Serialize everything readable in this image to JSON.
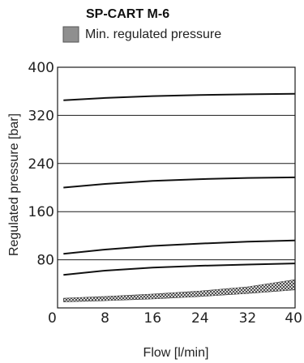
{
  "chart_data": {
    "type": "line",
    "title": "SP-CART  M-6",
    "xlabel": "Flow [l/min]",
    "ylabel": "Regulated pressure [bar]",
    "xlim": [
      0,
      40
    ],
    "ylim": [
      0,
      400
    ],
    "xticks": [
      0,
      8,
      16,
      24,
      32,
      40
    ],
    "yticks": [
      80,
      160,
      240,
      320,
      400
    ],
    "grid": true,
    "legend": {
      "position": "top-left",
      "entries": [
        {
          "label": "Min. regulated pressure",
          "color": "#888888"
        }
      ]
    },
    "series": [
      {
        "x": [
          1,
          8,
          16,
          24,
          32,
          40
        ],
        "y": [
          345,
          349,
          352,
          354,
          355,
          356
        ]
      },
      {
        "x": [
          1,
          8,
          16,
          24,
          32,
          40
        ],
        "y": [
          200,
          206,
          211,
          214,
          216,
          217
        ]
      },
      {
        "x": [
          1,
          8,
          16,
          24,
          32,
          40
        ],
        "y": [
          90,
          97,
          103,
          107,
          110,
          112
        ]
      },
      {
        "x": [
          1,
          8,
          16,
          24,
          32,
          40
        ],
        "y": [
          55,
          62,
          67,
          70,
          72,
          74
        ]
      }
    ],
    "band": {
      "name": "Min. regulated pressure",
      "x": [
        1,
        8,
        16,
        24,
        32,
        40
      ],
      "lower": [
        10,
        12,
        15,
        19,
        24,
        30
      ],
      "upper": [
        16,
        19,
        23,
        28,
        35,
        47
      ]
    }
  }
}
